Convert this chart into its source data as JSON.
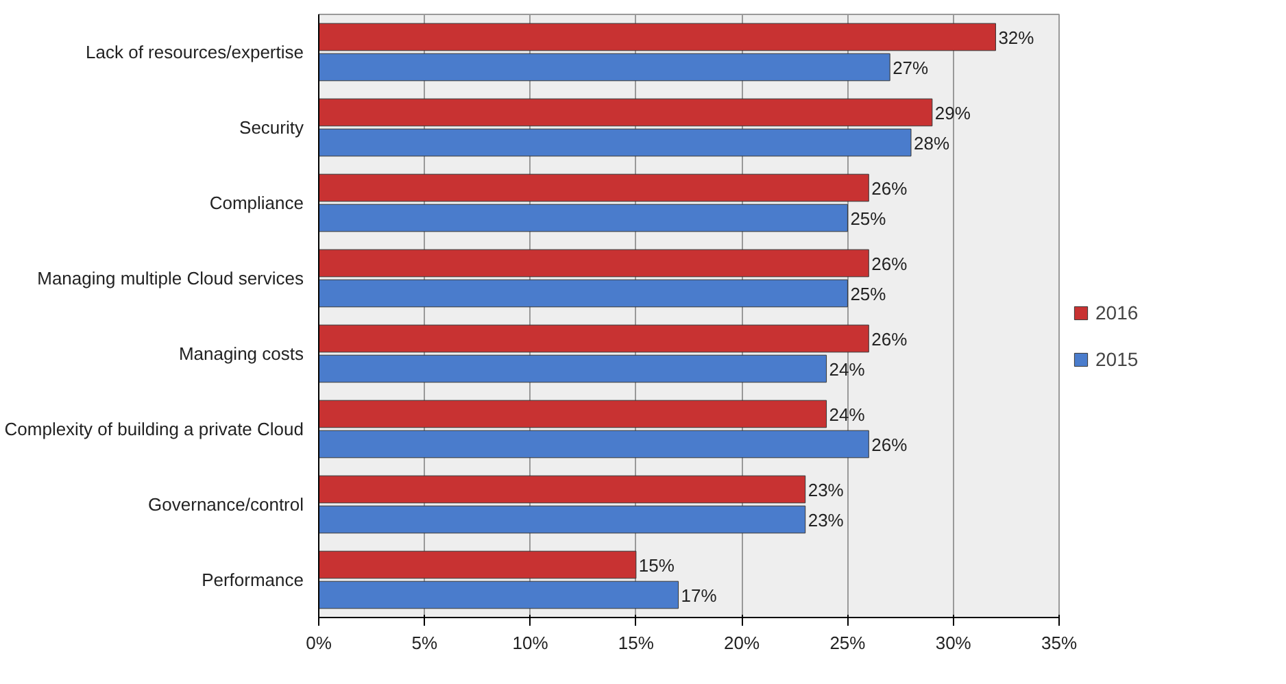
{
  "chart_data": {
    "type": "bar",
    "orientation": "horizontal",
    "categories": [
      "Lack of resources/expertise",
      "Security",
      "Compliance",
      "Managing multiple Cloud services",
      "Managing costs",
      "Complexity of building a private Cloud",
      "Governance/control",
      "Performance"
    ],
    "series": [
      {
        "name": "2016",
        "color": "#c83232",
        "values": [
          32,
          29,
          26,
          26,
          26,
          24,
          23,
          15
        ],
        "value_labels": [
          "32%",
          "29%",
          "26%",
          "26%",
          "26%",
          "24%",
          "23%",
          "15%"
        ]
      },
      {
        "name": "2015",
        "color": "#4a7ccc",
        "values": [
          27,
          28,
          25,
          25,
          24,
          26,
          23,
          17
        ],
        "value_labels": [
          "27%",
          "28%",
          "25%",
          "25%",
          "24%",
          "26%",
          "23%",
          "17%"
        ]
      }
    ],
    "xlim": [
      0,
      35
    ],
    "xticks": [
      {
        "value": 0,
        "label": "0%"
      },
      {
        "value": 5,
        "label": "5%"
      },
      {
        "value": 10,
        "label": "10%"
      },
      {
        "value": 15,
        "label": "15%"
      },
      {
        "value": 20,
        "label": "20%"
      },
      {
        "value": 25,
        "label": "25%"
      },
      {
        "value": 30,
        "label": "30%"
      },
      {
        "value": 35,
        "label": "35%"
      }
    ],
    "grid": "x",
    "legend": "right"
  }
}
